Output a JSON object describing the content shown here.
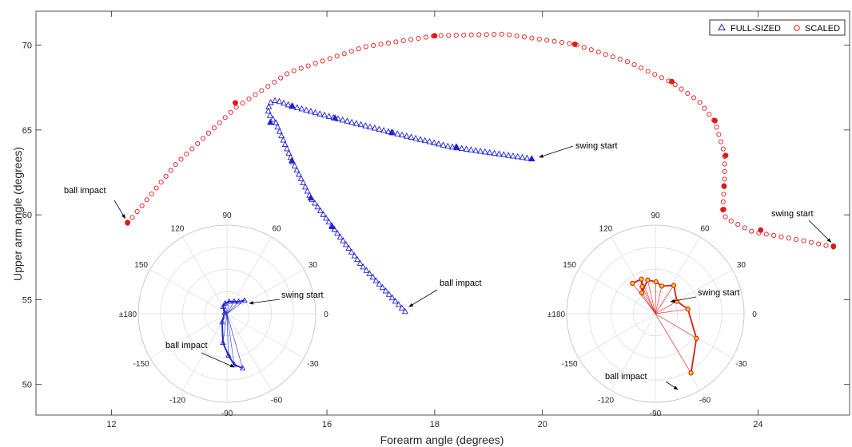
{
  "chart_data": {
    "type": "scatter",
    "xlabel": "Forearm angle (degrees)",
    "ylabel": "Upper arm angle (degrees)",
    "xlim": [
      10.6,
      25.7
    ],
    "ylim": [
      48.2,
      72.0
    ],
    "xticks": [
      12,
      16,
      18,
      20,
      24
    ],
    "yticks": [
      50,
      55,
      60,
      65,
      70
    ],
    "grid": false,
    "legend_position": "top-right",
    "colors": {
      "full": "#1f1fd6",
      "scaled": "#e01a1a"
    },
    "series": [
      {
        "name": "FULL-SIZED",
        "marker": "triangle",
        "color": "#1f1fd6",
        "path_x": [
          19.8,
          18.3,
          17.2,
          16.15,
          15.35,
          15.05,
          14.95,
          14.9,
          14.95,
          15.05,
          15.35,
          15.7,
          16.1,
          16.65,
          17.45
        ],
        "path_y": [
          63.3,
          64.0,
          64.85,
          65.7,
          66.4,
          66.75,
          66.6,
          66.2,
          65.8,
          65.45,
          63.2,
          61.0,
          59.3,
          57.0,
          54.3
        ],
        "filled": [
          [
            19.8,
            63.3
          ],
          [
            18.4,
            64.0
          ],
          [
            17.2,
            64.85
          ],
          [
            16.15,
            65.7
          ],
          [
            15.35,
            66.4
          ],
          [
            14.95,
            65.45
          ],
          [
            15.35,
            63.2
          ],
          [
            15.7,
            61.0
          ],
          [
            16.1,
            59.3
          ]
        ]
      },
      {
        "name": "SCALED",
        "marker": "circle",
        "color": "#e01a1a",
        "path_x": [
          12.3,
          13.2,
          14.3,
          15.3,
          16.7,
          18.0,
          19.3,
          20.6,
          21.6,
          22.4,
          22.9,
          23.2,
          23.38,
          23.38,
          23.35,
          23.4,
          23.9,
          24.8,
          25.4
        ],
        "path_y": [
          59.5,
          63.0,
          66.3,
          68.4,
          69.9,
          70.55,
          70.65,
          70.05,
          69.0,
          67.8,
          66.7,
          65.5,
          63.6,
          62.0,
          60.6,
          59.8,
          59.0,
          58.5,
          58.1
        ],
        "filled": [
          [
            12.3,
            59.55
          ],
          [
            14.3,
            66.6
          ],
          [
            18.0,
            70.55
          ],
          [
            20.6,
            70.05
          ],
          [
            22.4,
            67.85
          ],
          [
            23.2,
            65.55
          ],
          [
            23.4,
            63.5
          ],
          [
            23.37,
            61.7
          ],
          [
            23.35,
            60.3
          ],
          [
            24.05,
            59.1
          ],
          [
            25.4,
            58.15
          ]
        ]
      }
    ],
    "annotations": [
      {
        "text": "ball impact",
        "target": [
          12.3,
          59.6
        ],
        "anchor": "top-left"
      },
      {
        "text": "swing start",
        "target": [
          19.85,
          63.3
        ],
        "anchor": "right"
      },
      {
        "text": "ball impact",
        "target": [
          17.45,
          54.3
        ],
        "anchor": "top-right"
      },
      {
        "text": "swing start",
        "target": [
          25.4,
          58.15
        ],
        "anchor": "top"
      }
    ],
    "insets": [
      {
        "type": "polar",
        "series": "FULL-SIZED",
        "color": "#1f1fd6",
        "angle_labels": [
          "0",
          "30",
          "60",
          "90",
          "120",
          "150",
          "±180",
          "-150",
          "-120",
          "-90",
          "-60",
          "-30"
        ],
        "rmax": 1.0,
        "points": [
          {
            "theta": 37,
            "r": 0.25
          },
          {
            "theta": 46,
            "r": 0.19
          },
          {
            "theta": 60,
            "r": 0.16
          },
          {
            "theta": 80,
            "r": 0.14
          },
          {
            "theta": 100,
            "r": 0.12
          },
          {
            "theta": 120,
            "r": 0.09
          },
          {
            "theta": 160,
            "r": 0.03
          },
          {
            "theta": -120,
            "r": 0.11
          },
          {
            "theta": -98,
            "r": 0.33
          },
          {
            "theta": -88,
            "r": 0.47
          },
          {
            "theta": -82,
            "r": 0.58
          },
          {
            "theta": -74,
            "r": 0.64
          }
        ],
        "annotations": [
          "swing start",
          "ball impact"
        ]
      },
      {
        "type": "polar",
        "series": "SCALED",
        "color": "#e01a1a",
        "angle_labels": [
          "0",
          "30",
          "60",
          "90",
          "120",
          "150",
          "±180",
          "-150",
          "-120",
          "-90",
          "-60",
          "-30"
        ],
        "rmax": 1.0,
        "points": [
          {
            "theta": 127,
            "r": 0.43
          },
          {
            "theta": 112,
            "r": 0.42
          },
          {
            "theta": 116,
            "r": 0.34
          },
          {
            "theta": 123,
            "r": 0.28
          },
          {
            "theta": 103,
            "r": 0.39
          },
          {
            "theta": 89,
            "r": 0.36
          },
          {
            "theta": 77,
            "r": 0.32
          },
          {
            "theta": 57,
            "r": 0.38
          },
          {
            "theta": 30,
            "r": 0.28
          },
          {
            "theta": 8,
            "r": 0.37
          },
          {
            "theta": -31,
            "r": 0.54
          },
          {
            "theta": -59,
            "r": 0.78
          }
        ],
        "annotations": [
          "swing start",
          "ball impact"
        ]
      }
    ]
  }
}
